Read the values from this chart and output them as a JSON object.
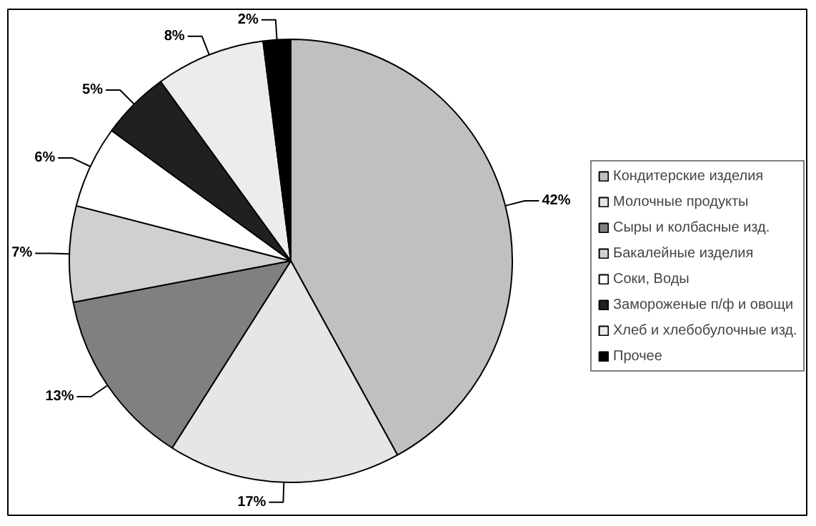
{
  "chart_data": {
    "type": "pie",
    "categories": [
      "Кондитерские изделия",
      "Молочные продукты",
      "Сыры и колбасные изд.",
      "Бакалейные изделия",
      "Соки, Воды",
      "Замороженые п/ф и овощи",
      "Хлеб и хлебобулочные изд.",
      "Прочее"
    ],
    "values": [
      42,
      17,
      13,
      7,
      6,
      5,
      8,
      2
    ],
    "value_labels": [
      "42%",
      "17%",
      "13%",
      "7%",
      "6%",
      "5%",
      "8%",
      "2%"
    ],
    "colors": [
      "#c0c0c0",
      "#e6e6e6",
      "#808080",
      "#d0d0d0",
      "#ffffff",
      "#202020",
      "#ececec",
      "#000000"
    ],
    "legend": "right"
  }
}
